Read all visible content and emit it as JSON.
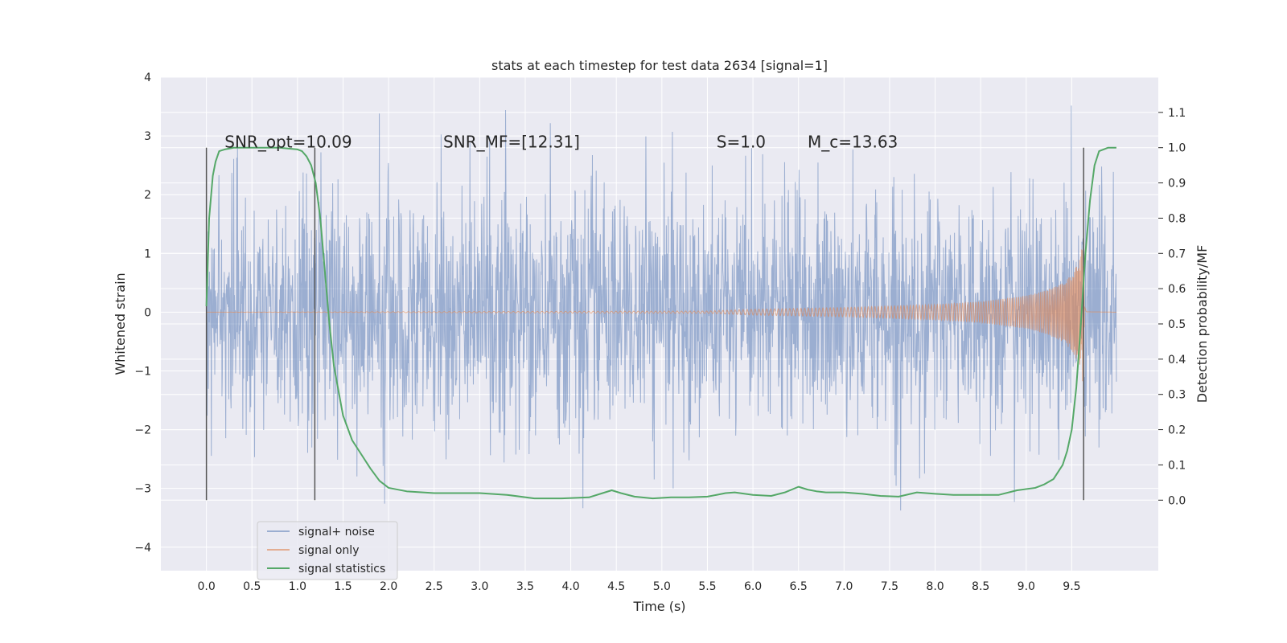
{
  "chart_data": {
    "type": "line",
    "title": "stats at each timestep for test data 2634 [signal=1]",
    "xlabel": "Time (s)",
    "ylabel": "Whitened strain",
    "y2label": "Detection probability/MF",
    "xlim": [
      -0.5,
      10.45
    ],
    "ylim": [
      -4.4,
      4.0
    ],
    "y2lim": [
      -0.2,
      1.2
    ],
    "x_ticks": [
      0.0,
      0.5,
      1.0,
      1.5,
      2.0,
      2.5,
      3.0,
      3.5,
      4.0,
      4.5,
      5.0,
      5.5,
      6.0,
      6.5,
      7.0,
      7.5,
      8.0,
      8.5,
      9.0,
      9.5
    ],
    "y_ticks": [
      -4,
      -3,
      -2,
      -1,
      0,
      1,
      2,
      3,
      4
    ],
    "y2_ticks": [
      0.0,
      0.1,
      0.2,
      0.3,
      0.4,
      0.5,
      0.6,
      0.7,
      0.8,
      0.9,
      1.0,
      1.1
    ],
    "grid": true,
    "legend_position": "lower-left",
    "annotations": [
      {
        "text": "SNR_opt=10.09",
        "x": 0.2,
        "y": 2.9
      },
      {
        "text": "SNR_MF=[12.31]",
        "x": 2.6,
        "y": 2.9
      },
      {
        "text": "S=1.0",
        "x": 5.6,
        "y": 2.9
      },
      {
        "text": "M_c=13.63",
        "x": 6.6,
        "y": 2.9
      }
    ],
    "vertical_lines": [
      {
        "x": 0.0,
        "y2_range": [
          0.0,
          1.0
        ]
      },
      {
        "x": 1.19,
        "y2_range": [
          0.0,
          1.0
        ]
      },
      {
        "x": 9.63,
        "y2_range": [
          0.0,
          1.0
        ]
      }
    ],
    "series": [
      {
        "name": "signal+ noise",
        "color": "#4c72b0",
        "axis": "left",
        "x_range": [
          0.0,
          9.99
        ],
        "noise_sigma": 1.0,
        "y_extremes": [
          -4.05,
          3.62
        ]
      },
      {
        "name": "signal only",
        "color": "#dd8452",
        "axis": "left",
        "x": [
          0.0,
          5.5,
          6.0,
          7.0,
          8.0,
          8.5,
          9.0,
          9.2,
          9.4,
          9.5,
          9.55,
          9.6,
          9.63,
          9.66,
          9.99
        ],
        "amplitude": [
          0.0,
          0.02,
          0.05,
          0.08,
          0.13,
          0.18,
          0.28,
          0.36,
          0.5,
          0.65,
          0.8,
          0.95,
          1.4,
          0.05,
          0.0
        ]
      },
      {
        "name": "signal statistics",
        "color": "#55a868",
        "axis": "right",
        "x": [
          0.0,
          0.03,
          0.07,
          0.1,
          0.14,
          0.2,
          0.3,
          0.5,
          0.8,
          1.0,
          1.05,
          1.1,
          1.15,
          1.2,
          1.25,
          1.3,
          1.35,
          1.4,
          1.5,
          1.6,
          1.7,
          1.8,
          1.9,
          2.0,
          2.2,
          2.5,
          3.0,
          3.3,
          3.6,
          3.9,
          4.2,
          4.35,
          4.45,
          4.55,
          4.7,
          4.9,
          5.1,
          5.3,
          5.5,
          5.6,
          5.7,
          5.8,
          6.0,
          6.2,
          6.35,
          6.5,
          6.6,
          6.7,
          6.8,
          7.0,
          7.2,
          7.4,
          7.6,
          7.8,
          8.0,
          8.2,
          8.5,
          8.7,
          8.9,
          9.1,
          9.2,
          9.3,
          9.4,
          9.45,
          9.5,
          9.55,
          9.6,
          9.65,
          9.7,
          9.75,
          9.8,
          9.9,
          9.99
        ],
        "values": [
          0.55,
          0.8,
          0.92,
          0.96,
          0.99,
          0.995,
          1.0,
          1.0,
          1.0,
          0.995,
          0.99,
          0.975,
          0.95,
          0.9,
          0.8,
          0.65,
          0.5,
          0.38,
          0.24,
          0.17,
          0.13,
          0.09,
          0.055,
          0.035,
          0.025,
          0.02,
          0.02,
          0.015,
          0.005,
          0.005,
          0.008,
          0.02,
          0.028,
          0.02,
          0.01,
          0.005,
          0.008,
          0.008,
          0.01,
          0.015,
          0.02,
          0.022,
          0.015,
          0.012,
          0.022,
          0.038,
          0.03,
          0.025,
          0.022,
          0.022,
          0.018,
          0.012,
          0.01,
          0.022,
          0.018,
          0.015,
          0.015,
          0.015,
          0.028,
          0.035,
          0.045,
          0.06,
          0.1,
          0.14,
          0.2,
          0.32,
          0.5,
          0.7,
          0.85,
          0.95,
          0.99,
          1.0,
          1.0
        ]
      }
    ]
  }
}
